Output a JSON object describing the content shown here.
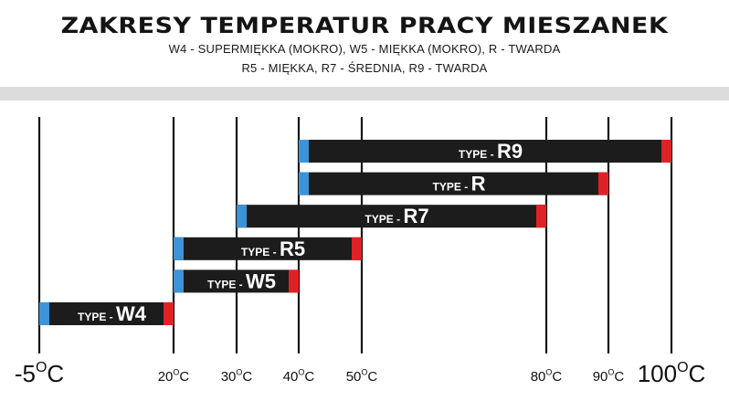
{
  "header": {
    "title": "ZAKRESY TEMPERATUR PRACY MIESZANEK",
    "subtitle_line1": "W4 - SUPERMIĘKKA (MOKRO), W5 - MIĘKKA (MOKRO), R - TWARDA",
    "subtitle_line2": "R5 - MIĘKKA, R7 - ŚREDNIA, R9 - TWARDA"
  },
  "chart_data": {
    "type": "bar",
    "orientation": "horizontal-range",
    "title": "ZAKRESY TEMPERATUR PRACY MIESZANEK",
    "type_prefix": "TYPE -",
    "series": [
      {
        "name": "R9",
        "min": 40,
        "max": 100
      },
      {
        "name": "R",
        "min": 40,
        "max": 90
      },
      {
        "name": "R7",
        "min": 30,
        "max": 80
      },
      {
        "name": "R5",
        "min": 20,
        "max": 50
      },
      {
        "name": "W5",
        "min": 20,
        "max": 40
      },
      {
        "name": "W4",
        "min": -5,
        "max": 20
      }
    ],
    "ticks": [
      {
        "value": -5,
        "text": "-5",
        "unit": "C",
        "size": "large"
      },
      {
        "value": 20,
        "text": "20",
        "unit": "C",
        "size": "small"
      },
      {
        "value": 30,
        "text": "30",
        "unit": "C",
        "size": "small"
      },
      {
        "value": 40,
        "text": "40",
        "unit": "C",
        "size": "small"
      },
      {
        "value": 50,
        "text": "50",
        "unit": "C",
        "size": "small"
      },
      {
        "value": 80,
        "text": "80",
        "unit": "C",
        "size": "small"
      },
      {
        "value": 90,
        "text": "90",
        "unit": "C",
        "size": "small"
      },
      {
        "value": 100,
        "text": "100",
        "unit": "C",
        "size": "large"
      }
    ],
    "xlabel": "",
    "ylabel": "",
    "grid": "vertical lines at tick values",
    "legend": "none",
    "colors": {
      "bar": "#1c1c1c",
      "cold_end": "#3b93d8",
      "hot_end": "#e02126",
      "grid": "#151515",
      "band": "#dcdcdc"
    }
  }
}
